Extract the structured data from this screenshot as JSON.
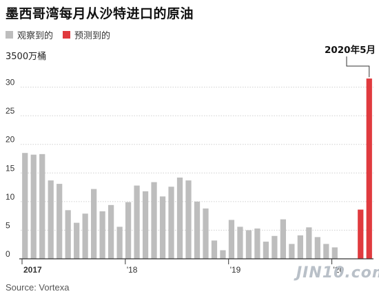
{
  "title": "墨西哥湾每月从沙特进口的原油",
  "legend": [
    {
      "label": "观察到的",
      "color": "#bdbdbd"
    },
    {
      "label": "预测到的",
      "color": "#e03a3e"
    }
  ],
  "unit_label": "3500万桶",
  "callout": "2020年5月",
  "source": "Source: Vortexa",
  "watermark": "JIN10.com",
  "chart_data": {
    "type": "bar",
    "ylim": [
      0,
      35
    ],
    "yticks": [
      0,
      5,
      10,
      15,
      20,
      25,
      30
    ],
    "x_tick_labels": [
      {
        "label": "2017",
        "index": 0,
        "bold": true
      },
      {
        "label": "'18",
        "index": 12,
        "bold": false
      },
      {
        "label": "'19",
        "index": 24,
        "bold": false
      },
      {
        "label": "'20",
        "index": 36,
        "bold": false
      }
    ],
    "categories": [
      "2017-01",
      "2017-02",
      "2017-03",
      "2017-04",
      "2017-05",
      "2017-06",
      "2017-07",
      "2017-08",
      "2017-09",
      "2017-10",
      "2017-11",
      "2017-12",
      "2018-01",
      "2018-02",
      "2018-03",
      "2018-04",
      "2018-05",
      "2018-06",
      "2018-07",
      "2018-08",
      "2018-09",
      "2018-10",
      "2018-11",
      "2018-12",
      "2019-01",
      "2019-02",
      "2019-03",
      "2019-04",
      "2019-05",
      "2019-06",
      "2019-07",
      "2019-08",
      "2019-09",
      "2019-10",
      "2019-11",
      "2019-12",
      "2020-01",
      "2020-02",
      "2020-03",
      "2020-04",
      "2020-05"
    ],
    "series": [
      {
        "name": "观察到的",
        "color": "#bdbdbd",
        "values": [
          18.5,
          18.2,
          18.3,
          13.7,
          13.1,
          8.5,
          6.3,
          7.9,
          12.2,
          8.3,
          9.4,
          5.6,
          9.9,
          12.8,
          11.8,
          13.4,
          10.9,
          12.6,
          14.2,
          13.7,
          10.0,
          8.8,
          3.2,
          1.5,
          6.8,
          5.6,
          5.0,
          5.3,
          3.0,
          4.0,
          6.9,
          2.6,
          4.1,
          5.5,
          3.8,
          2.6,
          2.0,
          null,
          null,
          null,
          null
        ]
      },
      {
        "name": "预测到的",
        "color": "#e03a3e",
        "values": [
          null,
          null,
          null,
          null,
          null,
          null,
          null,
          null,
          null,
          null,
          null,
          null,
          null,
          null,
          null,
          null,
          null,
          null,
          null,
          null,
          null,
          null,
          null,
          null,
          null,
          null,
          null,
          null,
          null,
          null,
          null,
          null,
          null,
          null,
          null,
          null,
          null,
          null,
          null,
          8.6,
          31.5
        ]
      }
    ]
  }
}
